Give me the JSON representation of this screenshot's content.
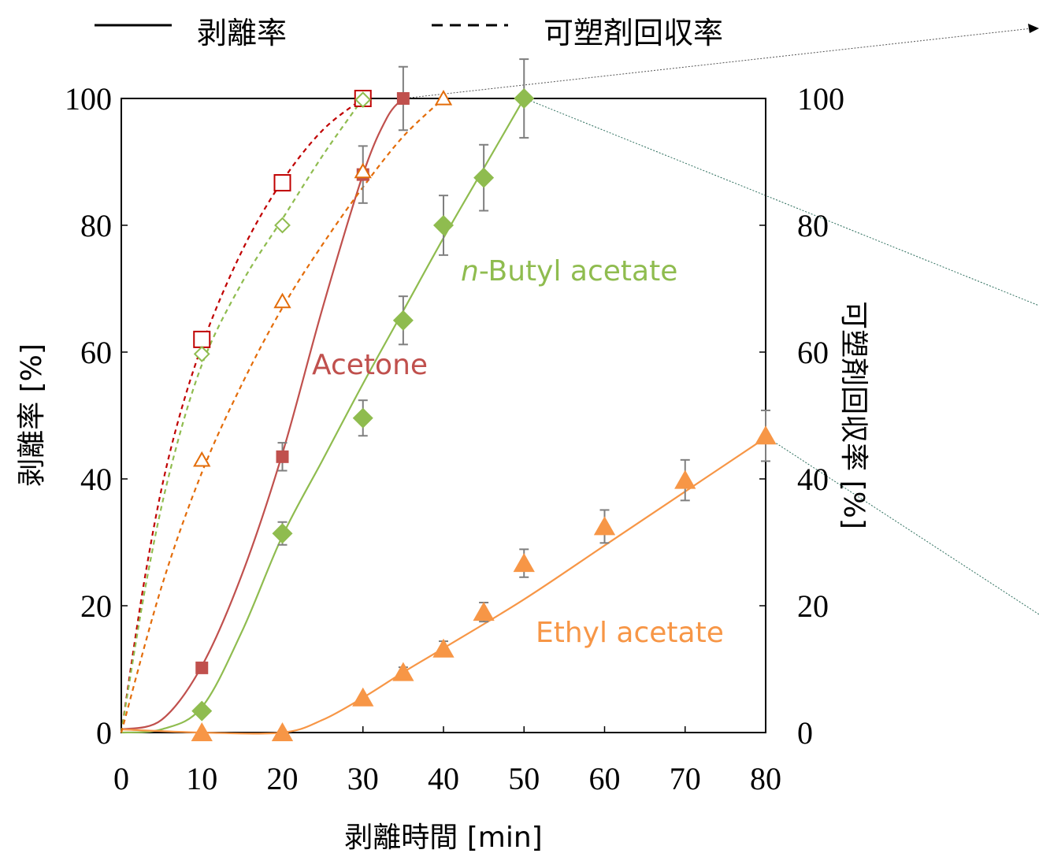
{
  "chart_data": {
    "type": "line",
    "xlabel": "剥離時間 [min]",
    "ylabel_left": "剥離率 [%]",
    "ylabel_right": "可塑剤回収率 [%]",
    "xlim": [
      0,
      80
    ],
    "ylim": [
      0,
      100
    ],
    "xticks": [
      0,
      10,
      20,
      30,
      40,
      50,
      60,
      70,
      80
    ],
    "yticks": [
      0,
      20,
      40,
      60,
      80,
      100
    ],
    "grid": false,
    "legend": {
      "placement": "top",
      "solid_label": "剥離率",
      "dashed_label": "可塑剤回収率"
    },
    "colors": {
      "acetone": "#c0504d",
      "acetone_recovery": "#c00000",
      "butyl": "#8fbc4f",
      "ethyl": "#f79646",
      "ethyl_recovery": "#e36c09",
      "errorbar": "#7f7f7f"
    },
    "series_labels": {
      "acetone": "Acetone",
      "butyl_prefix": "n",
      "butyl_rest": "-Butyl acetate",
      "ethyl": "Ethyl acetate"
    },
    "series": [
      {
        "key": "acetone",
        "marker": "filled-square",
        "style": "solid",
        "x": [
          10,
          20,
          30,
          35
        ],
        "y": [
          10.2,
          43.5,
          88,
          100
        ],
        "err": [
          0,
          2.2,
          4.5,
          5
        ]
      },
      {
        "key": "butyl",
        "marker": "filled-diamond",
        "style": "solid",
        "x": [
          10,
          20,
          30,
          35,
          40,
          45,
          50
        ],
        "y": [
          3.4,
          31.4,
          49.6,
          65,
          80,
          87.5,
          100
        ],
        "err": [
          0,
          1.8,
          2.8,
          3.8,
          4.7,
          5.2,
          6.2
        ]
      },
      {
        "key": "ethyl",
        "marker": "filled-triangle",
        "style": "solid",
        "x": [
          10,
          20,
          30,
          35,
          40,
          45,
          50,
          60,
          70,
          80
        ],
        "y": [
          0,
          0,
          5.5,
          9.5,
          13.2,
          19,
          26.7,
          32.5,
          39.8,
          46.8
        ],
        "err": [
          0,
          0,
          0,
          0.8,
          1.2,
          1.5,
          2.2,
          2.6,
          3.2,
          4
        ]
      },
      {
        "key": "acetone_recovery",
        "marker": "open-square",
        "style": "dashed",
        "x": [
          0,
          10,
          20,
          30
        ],
        "y": [
          0,
          62,
          86.7,
          100
        ]
      },
      {
        "key": "butyl_recovery",
        "marker": "open-diamond",
        "style": "dashed",
        "x": [
          0,
          10,
          20,
          30
        ],
        "y": [
          0,
          59.7,
          80,
          99.8
        ]
      },
      {
        "key": "ethyl_recovery",
        "marker": "open-triangle",
        "style": "dashed",
        "x": [
          0,
          10,
          20,
          30,
          40
        ],
        "y": [
          0,
          43,
          68,
          88.5,
          100
        ]
      }
    ],
    "fits": {
      "acetone": [
        [
          0,
          0.5
        ],
        [
          5,
          2
        ],
        [
          10,
          10.5
        ],
        [
          15,
          25
        ],
        [
          20,
          44
        ],
        [
          25,
          67
        ],
        [
          30,
          88
        ],
        [
          33,
          97
        ],
        [
          35,
          100
        ]
      ],
      "butyl": [
        [
          0,
          0
        ],
        [
          5,
          0.5
        ],
        [
          10,
          4
        ],
        [
          15,
          16
        ],
        [
          20,
          31
        ],
        [
          25,
          43
        ],
        [
          30,
          55
        ],
        [
          35,
          66.5
        ],
        [
          40,
          78
        ],
        [
          45,
          89
        ],
        [
          50,
          100
        ]
      ],
      "ethyl": [
        [
          0,
          0.5
        ],
        [
          10,
          0
        ],
        [
          20,
          0
        ],
        [
          25,
          2
        ],
        [
          30,
          5.5
        ],
        [
          35,
          9.5
        ],
        [
          40,
          13.3
        ],
        [
          50,
          21
        ],
        [
          60,
          29.5
        ],
        [
          70,
          38
        ],
        [
          80,
          46.5
        ]
      ],
      "acetone_recovery": [
        [
          0,
          0
        ],
        [
          3,
          25
        ],
        [
          6,
          44
        ],
        [
          10,
          61
        ],
        [
          15,
          76
        ],
        [
          20,
          87
        ],
        [
          25,
          95
        ],
        [
          30,
          100
        ]
      ],
      "butyl_recovery": [
        [
          0,
          0
        ],
        [
          3,
          23
        ],
        [
          6,
          41
        ],
        [
          10,
          58
        ],
        [
          15,
          71
        ],
        [
          20,
          81
        ],
        [
          25,
          91
        ],
        [
          30,
          100
        ]
      ],
      "ethyl_recovery": [
        [
          0,
          0
        ],
        [
          5,
          23
        ],
        [
          10,
          41
        ],
        [
          15,
          55
        ],
        [
          20,
          67
        ],
        [
          25,
          77
        ],
        [
          30,
          86
        ],
        [
          35,
          94
        ],
        [
          40,
          100
        ]
      ]
    }
  }
}
